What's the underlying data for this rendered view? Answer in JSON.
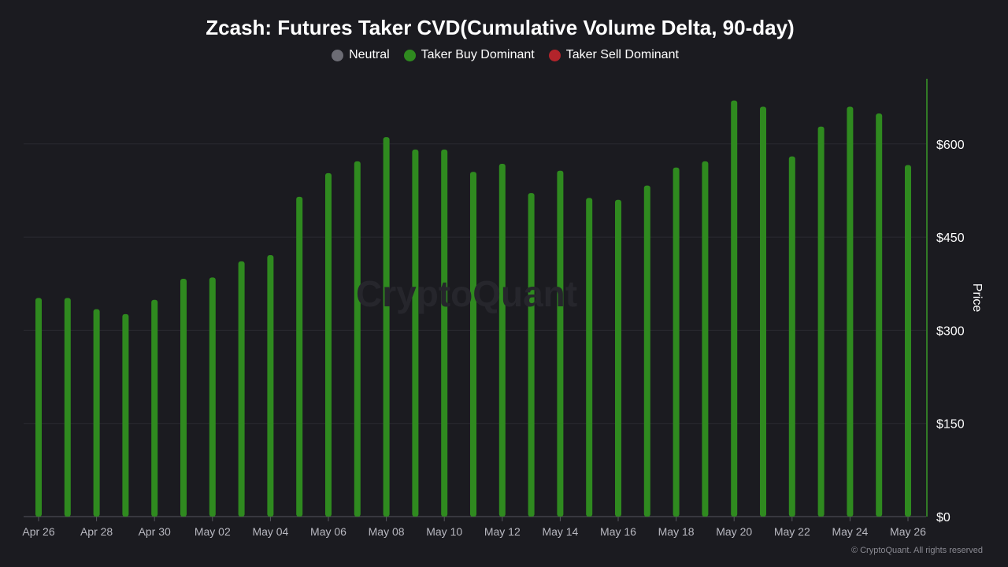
{
  "title": "Zcash: Futures Taker CVD(Cumulative Volume Delta, 90-day)",
  "legend": [
    {
      "label": "Neutral",
      "color": "#6c6c74"
    },
    {
      "label": "Taker Buy Dominant",
      "color": "#2f8a1f"
    },
    {
      "label": "Taker Sell Dominant",
      "color": "#b3242b"
    }
  ],
  "watermark": "CryptoQuant",
  "footer": "© CryptoQuant. All rights reserved",
  "chart_data": {
    "type": "bar",
    "xlabel": "",
    "ylabel": "Price",
    "ylim": [
      0,
      705
    ],
    "y_ticks": [
      0,
      150,
      300,
      450,
      600
    ],
    "y_tick_labels": [
      "$0",
      "$150",
      "$300",
      "$450",
      "$600"
    ],
    "x_tick_labels": [
      "Apr 26",
      "Apr 28",
      "Apr 30",
      "May 02",
      "May 04",
      "May 06",
      "May 08",
      "May 10",
      "May 12",
      "May 14",
      "May 16",
      "May 18",
      "May 20",
      "May 22",
      "May 24",
      "May 26"
    ],
    "grid": true,
    "legend_position": "top-center",
    "categories": [
      "Apr 26",
      "Apr 27",
      "Apr 28",
      "Apr 29",
      "Apr 30",
      "May 01",
      "May 02",
      "May 03",
      "May 04",
      "May 05",
      "May 06",
      "May 07",
      "May 08",
      "May 09",
      "May 10",
      "May 11",
      "May 12",
      "May 13",
      "May 14",
      "May 15",
      "May 16",
      "May 17",
      "May 18",
      "May 19",
      "May 20",
      "May 21",
      "May 22",
      "May 23",
      "May 24",
      "May 25",
      "May 26"
    ],
    "values": [
      352,
      352,
      334,
      326,
      349,
      383,
      385,
      411,
      421,
      515,
      553,
      572,
      611,
      591,
      591,
      555,
      568,
      521,
      557,
      513,
      510,
      533,
      562,
      572,
      670,
      660,
      580,
      628,
      660,
      649,
      566
    ],
    "bar_color": "#2f8a1f",
    "axis_color": "#3a9a28"
  }
}
